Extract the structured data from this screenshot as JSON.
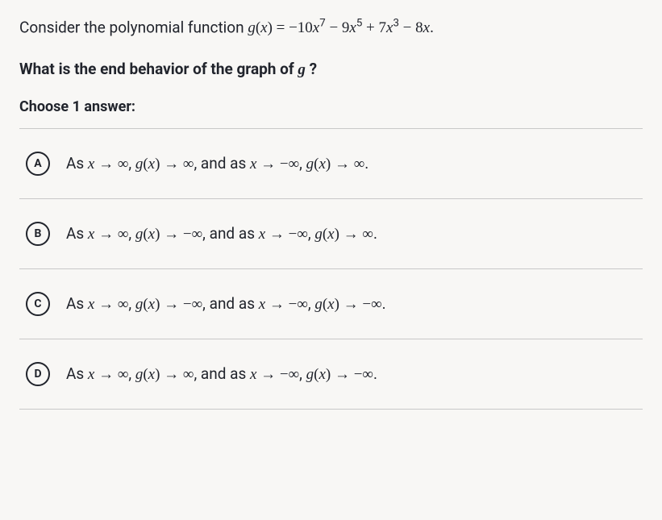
{
  "intro": {
    "prefix": "Consider the polynomial function ",
    "equation_html": "<span class='math'>g</span><span class='math-upright'>(</span><span class='math'>x</span><span class='math-upright'>)</span> <span class='math-upright'>=</span> <span class='math-upright'>−10</span><span class='math'>x</span><sup>7</sup> <span class='math-upright'>− 9</span><span class='math'>x</span><sup>5</sup> <span class='math-upright'>+ 7</span><span class='math'>x</span><sup>3</sup> <span class='math-upright'>− 8</span><span class='math'>x</span><span class='math-upright'>.</span>"
  },
  "question_html": "What is the end behavior of the graph of <span class='math'>g</span> ?",
  "choose": "Choose 1 answer:",
  "options": [
    {
      "letter": "A",
      "text_html": "As <span class='math'>x</span> <span class='math-upright'>→ ∞</span>, <span class='math'>g</span><span class='math-upright'>(</span><span class='math'>x</span><span class='math-upright'>)</span> <span class='math-upright'>→ ∞</span>, and as <span class='math'>x</span> <span class='math-upright'>→ −∞</span>, <span class='math'>g</span><span class='math-upright'>(</span><span class='math'>x</span><span class='math-upright'>)</span> <span class='math-upright'>→ ∞</span>."
    },
    {
      "letter": "B",
      "text_html": "As <span class='math'>x</span> <span class='math-upright'>→ ∞</span>, <span class='math'>g</span><span class='math-upright'>(</span><span class='math'>x</span><span class='math-upright'>)</span> <span class='math-upright'>→ −∞</span>, and as <span class='math'>x</span> <span class='math-upright'>→ −∞</span>, <span class='math'>g</span><span class='math-upright'>(</span><span class='math'>x</span><span class='math-upright'>)</span> <span class='math-upright'>→ ∞</span>."
    },
    {
      "letter": "C",
      "text_html": "As <span class='math'>x</span> <span class='math-upright'>→ ∞</span>, <span class='math'>g</span><span class='math-upright'>(</span><span class='math'>x</span><span class='math-upright'>)</span> <span class='math-upright'>→ −∞</span>, and as <span class='math'>x</span> <span class='math-upright'>→ −∞</span>, <span class='math'>g</span><span class='math-upright'>(</span><span class='math'>x</span><span class='math-upright'>)</span> <span class='math-upright'>→ −∞</span>."
    },
    {
      "letter": "D",
      "text_html": "As <span class='math'>x</span> <span class='math-upright'>→ ∞</span>, <span class='math'>g</span><span class='math-upright'>(</span><span class='math'>x</span><span class='math-upright'>)</span> <span class='math-upright'>→ ∞</span>, and as <span class='math'>x</span> <span class='math-upright'>→ −∞</span>, <span class='math'>g</span><span class='math-upright'>(</span><span class='math'>x</span><span class='math-upright'>)</span> <span class='math-upright'>→ −∞</span>."
    }
  ],
  "styles": {
    "background_color": "#f8f7f5",
    "text_color": "#21242c",
    "border_color": "#c8c8c8",
    "font_size_body": 19,
    "font_size_letter": 14,
    "letter_circle_size": 30,
    "letter_border_width": 2
  }
}
